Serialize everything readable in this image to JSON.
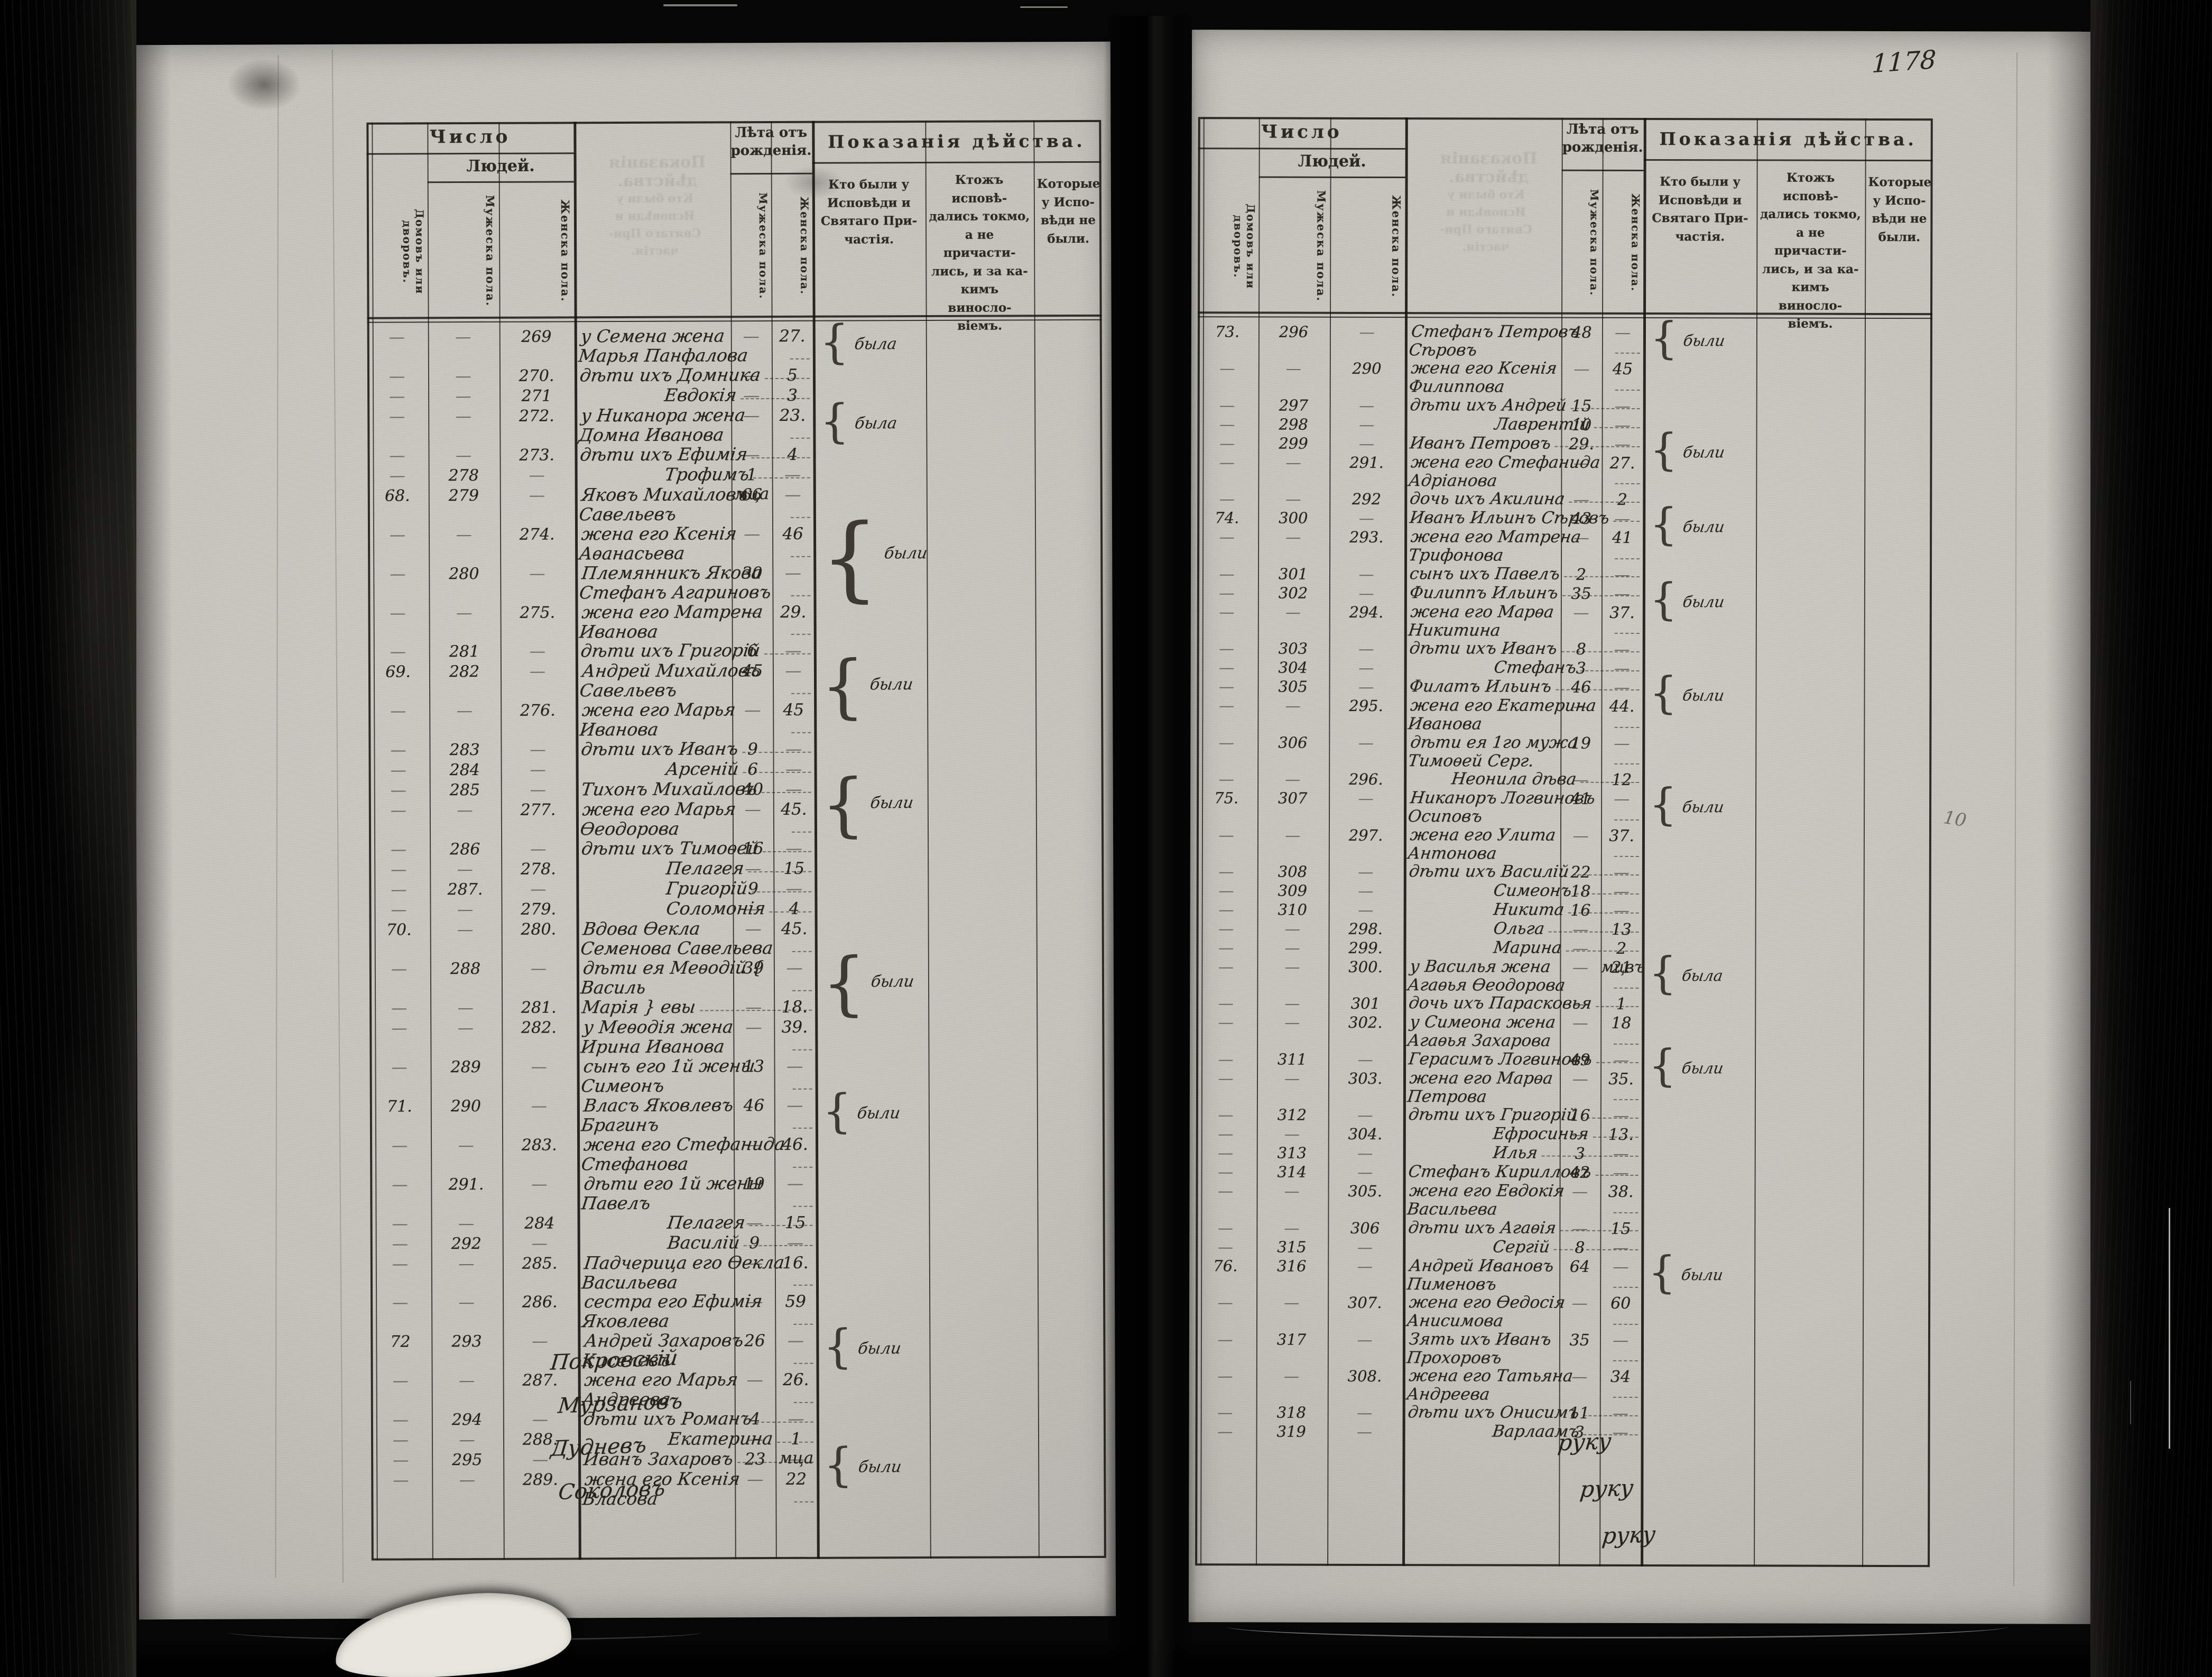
{
  "page_number": "1178",
  "margin_note": "10",
  "misc": {
    "dash": "—",
    "brace": "{"
  },
  "header": {
    "count_group": "Число",
    "count_sub": "Людей.",
    "col_houses": "Домовъ или\nдворовъ.",
    "col_male": "Мужеска пола.",
    "col_female": "Женска пола.",
    "age_group": "Лѣта отъ\nрожденія.",
    "age_male": "Мужеска пола.",
    "age_female": "Женска пола.",
    "action_group": "Показанія дѣйства.",
    "conf1": "Кто были у\nИсповѣди и\nСвятаго При-\nчастія.",
    "conf2": "Ктожъ исповѣ-\nдались токмо,\nа не причасти-\nлись, и за ка-\nкимъ виносло-\nвіемъ.",
    "conf3": "Которые\nу Испо-\nвѣди не\nбыли."
  },
  "left_page": {
    "rows": [
      {
        "f": "269",
        "name": "у Семена жена Марья Панфалова",
        "af": "27.",
        "note": "была",
        "span": 2
      },
      {
        "f": "270.",
        "name": "дѣти ихъ Домника",
        "af": "5"
      },
      {
        "f": "271",
        "name": "Евдокія",
        "af": "3",
        "ind": 2
      },
      {
        "f": "272.",
        "name": "у Никанора жена Домна Иванова",
        "af": "23.",
        "note": "была",
        "span": 2
      },
      {
        "f": "273.",
        "name": "дѣти ихъ Ефимія",
        "af": "4"
      },
      {
        "m": "278",
        "name": "Трофимъ",
        "am": "1 мца",
        "ind": 2
      },
      {
        "h": "68.",
        "m": "279",
        "name": "Яковъ Михайловъ Савельевъ",
        "am": "66"
      },
      {
        "f": "274.",
        "name": "жена его Ксенія Аѳанасьева",
        "af": "46",
        "note": "были",
        "span": 4
      },
      {
        "m": "280",
        "name": "Племянникъ Якова Стефанъ Агариновъ",
        "am": "30"
      },
      {
        "f": "275.",
        "name": "жена его Матрена Иванова",
        "af": "29."
      },
      {
        "m": "281",
        "name": "дѣти ихъ Григорій",
        "am": "6"
      },
      {
        "h": "69.",
        "m": "282",
        "name": "Андрей Михайловъ Савельевъ",
        "am": "45",
        "note": "были",
        "span": 3
      },
      {
        "f": "276.",
        "name": "жена его Марья Иванова",
        "af": "45"
      },
      {
        "m": "283",
        "name": "дѣти ихъ Иванъ",
        "am": "9"
      },
      {
        "m": "284",
        "name": "Арсеній",
        "am": "6",
        "ind": 2
      },
      {
        "m": "285",
        "name": "Тихонъ Михайловъ",
        "am": "40",
        "note": "были",
        "span": 3
      },
      {
        "f": "277.",
        "name": "жена его Марья Ѳеодорова",
        "af": "45."
      },
      {
        "m": "286",
        "name": "дѣти ихъ Тимоѳей",
        "am": "16"
      },
      {
        "f": "278.",
        "name": "Пелагея",
        "af": "15",
        "ind": 2
      },
      {
        "m": "287.",
        "name": "Григорій",
        "am": "9",
        "ind": 2
      },
      {
        "f": "279.",
        "name": "Соломонія",
        "af": "4",
        "ind": 2
      },
      {
        "h": "70.",
        "f": "280.",
        "name": "Вдова Ѳекла Семенова Савельева",
        "af": "45."
      },
      {
        "m": "288",
        "name": "дѣти ея Меѳодій { Василь",
        "am": "39",
        "note": "были",
        "span": 3
      },
      {
        "f": "281.",
        "name": "Марія } евы",
        "af": "18."
      },
      {
        "f": "282.",
        "name": "у Меѳодія жена Ирина Иванова",
        "af": "39."
      },
      {
        "m": "289",
        "name": "сынъ его 1й жены Симеонъ",
        "am": "13"
      },
      {
        "h": "71.",
        "m": "290",
        "name": "Власъ Яковлевъ Брагинъ",
        "am": "46",
        "note": "были",
        "span": 2
      },
      {
        "f": "283.",
        "name": "жена его Стефанида Стефанова",
        "af": "46."
      },
      {
        "m": "291.",
        "name": "дѣти его 1й жены Павелъ",
        "am": "19"
      },
      {
        "f": "284",
        "name": "Пелагея",
        "af": "15",
        "ind": 2
      },
      {
        "m": "292",
        "name": "Василій",
        "am": "9",
        "ind": 2
      },
      {
        "f": "285.",
        "name": "Падчерица его Ѳекла Васильева",
        "af": "16."
      },
      {
        "f": "286.",
        "name": "сестра его Ефимія Яковлева",
        "af": "59"
      },
      {
        "h": "72",
        "m": "293",
        "name": "Андрей Захаровъ Киселевъ",
        "am": "26",
        "note": "были",
        "span": 2
      },
      {
        "f": "287.",
        "name": "жена его Марья Андреева",
        "af": "26."
      },
      {
        "m": "294",
        "name": "дѣти ихъ Романъ",
        "am": "4"
      },
      {
        "f": "288.",
        "name": "Екатерина",
        "af": "1 мца",
        "ind": 2
      },
      {
        "m": "295",
        "name": "Иванъ Захаровъ",
        "am": "23",
        "note": "были",
        "span": 2
      },
      {
        "f": "289.",
        "name": "жена его Ксенія Власова",
        "af": "22"
      }
    ],
    "signatures": [
      "Покровскій",
      "Мурзановъ",
      "Дудневъ",
      "Соколовъ"
    ]
  },
  "right_page": {
    "rows": [
      {
        "h": "73.",
        "m": "296",
        "name": "Стефанъ Петровъ Сѣровъ",
        "am": "48",
        "note": "были",
        "span": 2
      },
      {
        "f": "290",
        "name": "жена его Ксенія Филиппова",
        "af": "45"
      },
      {
        "m": "297",
        "name": "дѣти ихъ Андрей",
        "am": "15"
      },
      {
        "m": "298",
        "name": "Лаврентій",
        "am": "10",
        "ind": 2
      },
      {
        "m": "299",
        "name": "Иванъ Петровъ",
        "am": "29.",
        "note": "были",
        "span": 2
      },
      {
        "f": "291.",
        "name": "жена его Стефанида Адріанова",
        "af": "27."
      },
      {
        "f": "292",
        "name": "дочь ихъ Акилина",
        "af": "2"
      },
      {
        "h": "74.",
        "m": "300",
        "name": "Иванъ Ильинъ Сѣровъ",
        "am": "43",
        "note": "были",
        "span": 2
      },
      {
        "f": "293.",
        "name": "жена его Матрена Трифонова",
        "af": "41"
      },
      {
        "m": "301",
        "name": "сынъ ихъ Павелъ",
        "am": "2"
      },
      {
        "m": "302",
        "name": "Филиппъ Ильинъ",
        "am": "35",
        "note": "были",
        "span": 2
      },
      {
        "f": "294.",
        "name": "жена его Марѳа Никитина",
        "af": "37."
      },
      {
        "m": "303",
        "name": "дѣти ихъ Иванъ",
        "am": "8"
      },
      {
        "m": "304",
        "name": "Стефанъ",
        "am": "3",
        "ind": 2
      },
      {
        "m": "305",
        "name": "Филатъ Ильинъ",
        "am": "46",
        "note": "были",
        "span": 2
      },
      {
        "f": "295.",
        "name": "жена его Екатерина Иванова",
        "af": "44."
      },
      {
        "m": "306",
        "name": "дѣти ея 1го мужа Тимоѳей Серг.",
        "am": "19"
      },
      {
        "f": "296.",
        "name": "Неонила дѣва",
        "af": "12",
        "ind": 1
      },
      {
        "h": "75.",
        "m": "307",
        "name": "Никаноръ Логвиновъ Осиповъ",
        "am": "41",
        "note": "были",
        "span": 2
      },
      {
        "f": "297.",
        "name": "жена его Улита Антонова",
        "af": "37."
      },
      {
        "m": "308",
        "name": "дѣти ихъ Василій",
        "am": "22"
      },
      {
        "m": "309",
        "name": "Симеонъ",
        "am": "18",
        "ind": 2
      },
      {
        "m": "310",
        "name": "Никита",
        "am": "16",
        "ind": 2
      },
      {
        "f": "298.",
        "name": "Ольга",
        "af": "13",
        "ind": 2
      },
      {
        "f": "299.",
        "name": "Марина",
        "af": "2 мцвъ",
        "ind": 2
      },
      {
        "f": "300.",
        "name": "у Василья жена Агаѳья Ѳеодорова",
        "af": "21",
        "note": "была",
        "span": 2
      },
      {
        "f": "301",
        "name": "дочь ихъ Парасковья",
        "af": "1"
      },
      {
        "f": "302.",
        "name": "у Симеона жена Агаѳья Захарова",
        "af": "18"
      },
      {
        "m": "311",
        "name": "Герасимъ Логвиновъ",
        "am": "49",
        "note": "были",
        "span": 2
      },
      {
        "f": "303.",
        "name": "жена его Марѳа Петрова",
        "af": "35."
      },
      {
        "m": "312",
        "name": "дѣти ихъ Григорій",
        "am": "16"
      },
      {
        "f": "304.",
        "name": "Ефросинья",
        "af": "13.",
        "ind": 2
      },
      {
        "m": "313",
        "name": "Илья",
        "am": "3",
        "ind": 2
      },
      {
        "m": "314",
        "name": "Стефанъ Кирилловъ",
        "am": "42"
      },
      {
        "f": "305.",
        "name": "жена его Евдокія Васильева",
        "af": "38."
      },
      {
        "f": "306",
        "name": "дѣти ихъ Агаѳія",
        "af": "15"
      },
      {
        "m": "315",
        "name": "Сергій",
        "am": "8",
        "ind": 2
      },
      {
        "h": "76.",
        "m": "316",
        "name": "Андрей Ивановъ Пименовъ",
        "am": "64",
        "note": "были",
        "span": 2
      },
      {
        "f": "307.",
        "name": "жена его Ѳедосія Анисимова",
        "af": "60"
      },
      {
        "m": "317",
        "name": "Зять ихъ Иванъ Прохоровъ",
        "am": "35"
      },
      {
        "f": "308.",
        "name": "жена его Татьяна Андреева",
        "af": "34"
      },
      {
        "m": "318",
        "name": "дѣти ихъ Онисимъ",
        "am": "11"
      },
      {
        "m": "319",
        "name": "Варлаамъ",
        "am": "3",
        "ind": 2
      }
    ],
    "closing": [
      "руку",
      "руку",
      "руку"
    ]
  }
}
